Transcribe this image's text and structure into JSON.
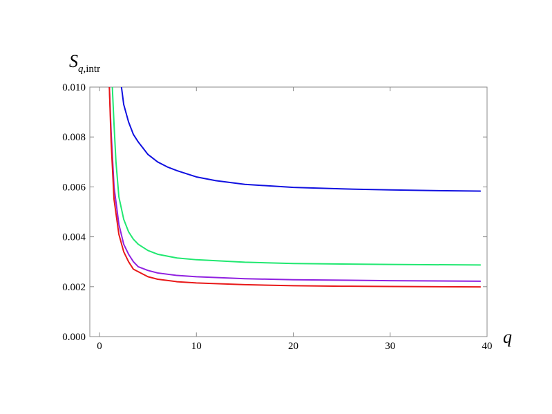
{
  "chart_data": {
    "type": "line",
    "title": "",
    "xlabel": "q",
    "ylabel": {
      "main": "S",
      "sub_italic": "q",
      "sub_text": ",intr"
    },
    "xlim": [
      -1,
      40
    ],
    "ylim": [
      0,
      0.01
    ],
    "x_ticks": [
      0,
      10,
      20,
      30,
      40
    ],
    "y_ticks": [
      0.0,
      0.002,
      0.004,
      0.006,
      0.008,
      0.01
    ],
    "y_tick_labels": [
      "0.000",
      "0.002",
      "0.004",
      "0.006",
      "0.008",
      "0.010"
    ],
    "grid": false,
    "legend": "none",
    "series": [
      {
        "color": "#1010e0",
        "points": [
          [
            2.2,
            0.0102
          ],
          [
            2.5,
            0.0093
          ],
          [
            3,
            0.0086
          ],
          [
            3.5,
            0.0081
          ],
          [
            4,
            0.0078
          ],
          [
            5,
            0.0073
          ],
          [
            6,
            0.007
          ],
          [
            7,
            0.0068
          ],
          [
            8,
            0.00665
          ],
          [
            10,
            0.0064
          ],
          [
            12,
            0.00625
          ],
          [
            15,
            0.0061
          ],
          [
            20,
            0.00598
          ],
          [
            25,
            0.00592
          ],
          [
            30,
            0.00588
          ],
          [
            35,
            0.00585
          ],
          [
            39.3,
            0.00583
          ]
        ]
      },
      {
        "color": "#20e870",
        "points": [
          [
            1.3,
            0.0102
          ],
          [
            1.5,
            0.0085
          ],
          [
            1.7,
            0.007
          ],
          [
            2,
            0.0056
          ],
          [
            2.5,
            0.0047
          ],
          [
            3,
            0.0042
          ],
          [
            3.5,
            0.0039
          ],
          [
            4,
            0.0037
          ],
          [
            5,
            0.00345
          ],
          [
            6,
            0.0033
          ],
          [
            8,
            0.00315
          ],
          [
            10,
            0.00308
          ],
          [
            15,
            0.00298
          ],
          [
            20,
            0.00293
          ],
          [
            25,
            0.00291
          ],
          [
            30,
            0.00289
          ],
          [
            39.3,
            0.00287
          ]
        ]
      },
      {
        "color": "#9020e0",
        "points": [
          [
            1.0,
            0.0102
          ],
          [
            1.2,
            0.0082
          ],
          [
            1.5,
            0.006
          ],
          [
            2,
            0.0045
          ],
          [
            2.5,
            0.0037
          ],
          [
            3,
            0.0033
          ],
          [
            3.5,
            0.003
          ],
          [
            4,
            0.0028
          ],
          [
            5,
            0.00265
          ],
          [
            6,
            0.00255
          ],
          [
            8,
            0.00245
          ],
          [
            10,
            0.0024
          ],
          [
            15,
            0.00232
          ],
          [
            20,
            0.00228
          ],
          [
            25,
            0.00226
          ],
          [
            30,
            0.00224
          ],
          [
            39.3,
            0.00222
          ]
        ]
      },
      {
        "color": "#e81818",
        "points": [
          [
            1.0,
            0.0102
          ],
          [
            1.2,
            0.0078
          ],
          [
            1.5,
            0.0055
          ],
          [
            2,
            0.0041
          ],
          [
            2.5,
            0.0034
          ],
          [
            3,
            0.003
          ],
          [
            3.5,
            0.0027
          ],
          [
            4,
            0.0026
          ],
          [
            5,
            0.0024
          ],
          [
            6,
            0.0023
          ],
          [
            8,
            0.0022
          ],
          [
            10,
            0.00215
          ],
          [
            15,
            0.00208
          ],
          [
            20,
            0.00204
          ],
          [
            25,
            0.00202
          ],
          [
            30,
            0.00201
          ],
          [
            39.3,
            0.00199
          ]
        ]
      }
    ]
  }
}
